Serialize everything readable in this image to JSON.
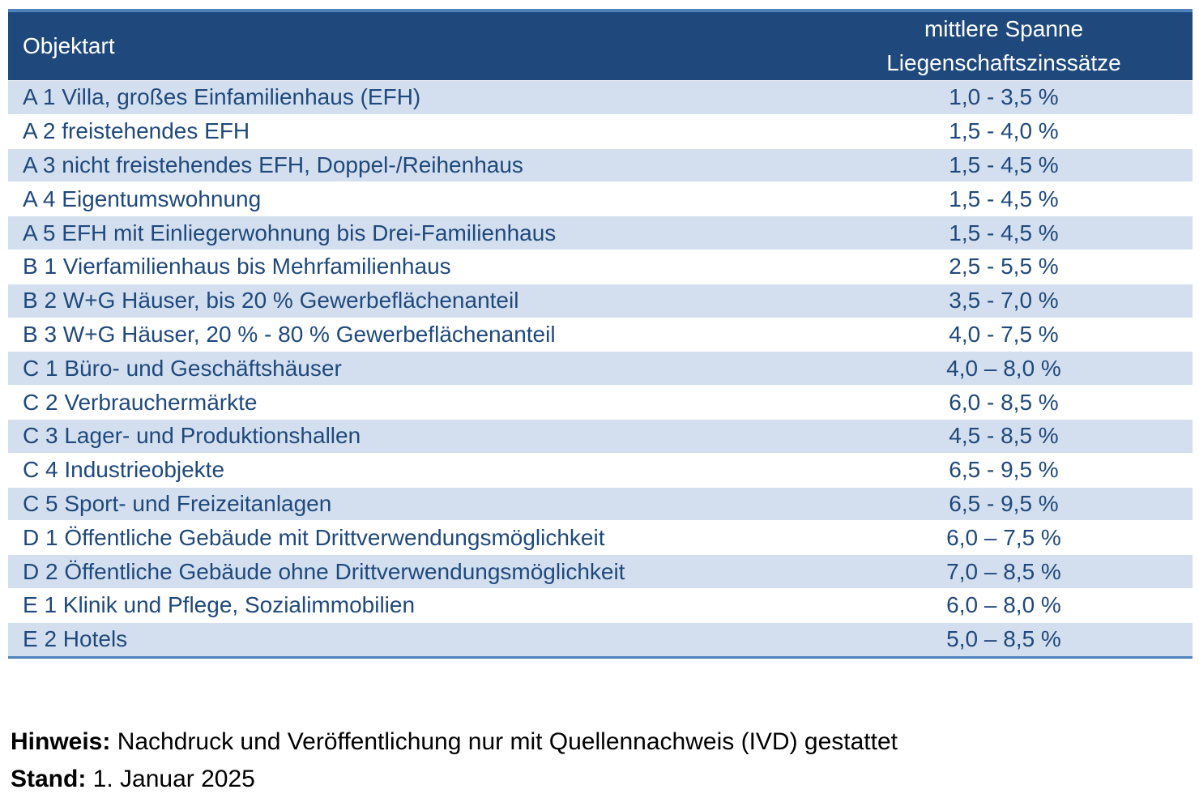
{
  "table": {
    "header": {
      "col_type": "Objektart",
      "col_range_line1": "mittlere Spanne",
      "col_range_line2": "Liegenschaftszinssätze"
    },
    "rows": [
      {
        "type": "A 1 Villa, großes Einfamilienhaus (EFH)",
        "range": "1,0 - 3,5 %"
      },
      {
        "type": "A 2 freistehendes EFH",
        "range": "1,5 - 4,0 %"
      },
      {
        "type": "A 3 nicht freistehendes EFH, Doppel-/Reihenhaus",
        "range": "1,5 - 4,5 %"
      },
      {
        "type": "A 4 Eigentumswohnung",
        "range": "1,5 - 4,5 %"
      },
      {
        "type": "A 5 EFH mit Einliegerwohnung bis Drei-Familienhaus",
        "range": "1,5 - 4,5 %"
      },
      {
        "type": "B 1 Vierfamilienhaus bis Mehrfamilienhaus",
        "range": "2,5 - 5,5 %"
      },
      {
        "type": "B 2 W+G Häuser, bis 20 % Gewerbeflächenanteil",
        "range": "3,5 - 7,0 %"
      },
      {
        "type": "B 3 W+G Häuser, 20 %  - 80 % Gewerbeflächenanteil",
        "range": "4,0 - 7,5 %"
      },
      {
        "type": "C 1 Büro- und Geschäftshäuser",
        "range": "4,0 – 8,0 %"
      },
      {
        "type": "C 2 Verbrauchermärkte",
        "range": "6,0 - 8,5 %"
      },
      {
        "type": "C 3 Lager- und Produktionshallen",
        "range": "4,5 - 8,5 %"
      },
      {
        "type": "C 4 Industrieobjekte",
        "range": "6,5 - 9,5 %"
      },
      {
        "type": "C 5 Sport- und Freizeitanlagen",
        "range": "6,5 - 9,5 %"
      },
      {
        "type": "D 1 Öffentliche Gebäude mit Drittverwendungsmöglichkeit",
        "range": "6,0 – 7,5 %"
      },
      {
        "type": "D 2 Öffentliche Gebäude ohne Drittverwendungsmöglichkeit",
        "range": "7,0 – 8,5 %"
      },
      {
        "type": "E 1 Klinik und Pflege, Sozialimmobilien",
        "range": "6,0 – 8,0 %"
      },
      {
        "type": "E 2 Hotels",
        "range": "5,0 – 8,5 %"
      }
    ]
  },
  "notes": {
    "hint_label": "Hinweis:",
    "hint_text": " Nachdruck und Veröffentlichung nur mit Quellennachweis (IVD) gestattet",
    "date_label": "Stand:",
    "date_text": " 1. Januar 2025"
  },
  "colors": {
    "header_bg": "#1f497d",
    "stripe_bg": "#d3dfee",
    "text": "#1f497d",
    "rule": "#4f81bd"
  }
}
